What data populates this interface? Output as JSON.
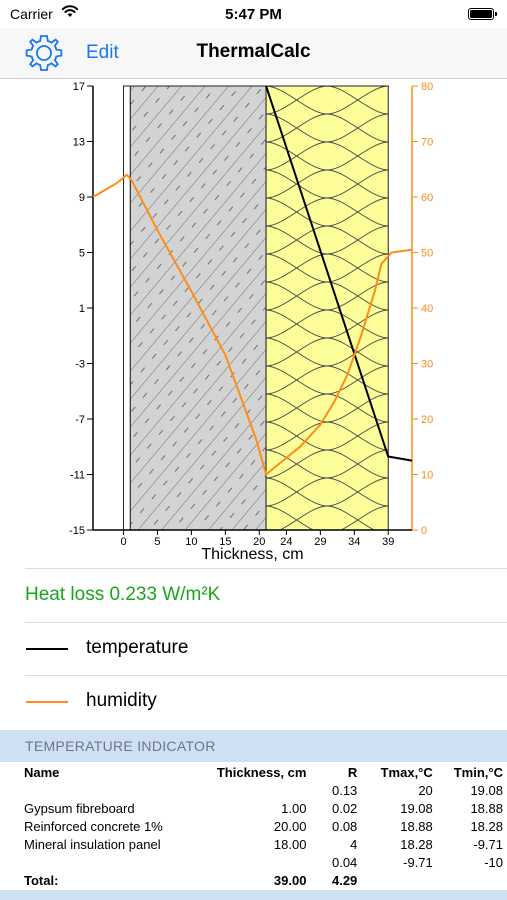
{
  "status_bar": {
    "carrier": "Carrier",
    "time": "5:47 PM"
  },
  "nav": {
    "edit_label": "Edit",
    "title": "ThermalCalc"
  },
  "chart_data": {
    "type": "line",
    "xlabel": "Thickness, cm",
    "x_ticks": [
      "0",
      "5",
      "10",
      "15",
      "20",
      "24",
      "29",
      "34",
      "39"
    ],
    "y_left_ticks": [
      "17",
      "13",
      "9",
      "5",
      "1",
      "-3",
      "-7",
      "-11",
      "-15"
    ],
    "y_right_ticks": [
      "80",
      "70",
      "60",
      "50",
      "40",
      "30",
      "20",
      "10",
      "0"
    ],
    "ylim_left": [
      -15,
      17
    ],
    "ylim_right": [
      0,
      80
    ],
    "layers": [
      {
        "material": "Gypsum fibreboard",
        "from": 0,
        "to": 1,
        "fill": "#ffffff"
      },
      {
        "material": "Reinforced concrete 1%",
        "from": 1,
        "to": 21,
        "fill": "#d3d3d3"
      },
      {
        "material": "Mineral insulation panel",
        "from": 21,
        "to": 39,
        "fill": "#fdfd9a"
      }
    ],
    "series": [
      {
        "name": "temperature",
        "axis": "left",
        "color": "#000000",
        "points": [
          [
            21,
            17
          ],
          [
            39,
            -9.7
          ],
          [
            42.5,
            -10
          ]
        ]
      },
      {
        "name": "humidity",
        "axis": "right",
        "color": "#ff8c1a",
        "points": [
          [
            -4.5,
            60
          ],
          [
            -1,
            62.5
          ],
          [
            0.5,
            64
          ],
          [
            1.2,
            63
          ],
          [
            5,
            54
          ],
          [
            10,
            43
          ],
          [
            15,
            31.5
          ],
          [
            19.5,
            16.5
          ],
          [
            21,
            10
          ],
          [
            23,
            12
          ],
          [
            26,
            15
          ],
          [
            29,
            19
          ],
          [
            31,
            23
          ],
          [
            33,
            28
          ],
          [
            35,
            35
          ],
          [
            37,
            43
          ],
          [
            38,
            48
          ],
          [
            39.5,
            50
          ],
          [
            42.5,
            50.5
          ]
        ]
      }
    ]
  },
  "heat_loss": "Heat loss 0.233 W/m²K",
  "legend": [
    {
      "label": "temperature",
      "color": "#000000"
    },
    {
      "label": "humidity",
      "color": "#ff8c1a"
    }
  ],
  "section": {
    "title": "TEMPERATURE INDICATOR"
  },
  "table": {
    "headers": [
      "Name",
      "Thickness, cm",
      "R",
      "Tmax,°C",
      "Tmin,°C"
    ],
    "rows": [
      [
        "",
        "",
        "0.13",
        "20",
        "19.08"
      ],
      [
        "Gypsum fibreboard",
        "1.00",
        "0.02",
        "19.08",
        "18.88"
      ],
      [
        "Reinforced concrete 1%",
        "20.00",
        "0.08",
        "18.88",
        "18.28"
      ],
      [
        "Mineral insulation panel",
        "18.00",
        "4",
        "18.28",
        "-9.71"
      ],
      [
        "",
        "",
        "0.04",
        "-9.71",
        "-10"
      ]
    ],
    "total": [
      "Total:",
      "39.00",
      "4.29",
      "",
      ""
    ]
  }
}
